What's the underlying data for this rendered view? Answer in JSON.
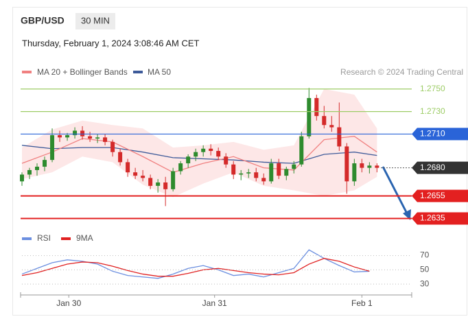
{
  "chart_data": {
    "type": "candlestick",
    "symbol": "GBP/USD",
    "timeframe": "30 MIN",
    "subtitle": "Thursday, February 1, 2024 3:08:46 AM CET",
    "credit": "Research © 2024 Trading Central",
    "up_color": "#2e8b2e",
    "down_color": "#d42a2a",
    "xlim": [
      0,
      51.6
    ],
    "ylim": [
      1.2628,
      1.2759
    ],
    "xticks": [
      {
        "value": 6.2,
        "label": "Jan 30"
      },
      {
        "value": 25.5,
        "label": "Jan 31"
      },
      {
        "value": 45,
        "label": "Feb 1"
      }
    ],
    "ohlc": [
      [
        1.2668,
        1.2676,
        1.2664,
        1.2674
      ],
      [
        1.2674,
        1.268,
        1.267,
        1.2678
      ],
      [
        1.2678,
        1.2684,
        1.2673,
        1.2681
      ],
      [
        1.2681,
        1.269,
        1.2677,
        1.2687
      ],
      [
        1.2687,
        1.2715,
        1.2685,
        1.2709
      ],
      [
        1.2709,
        1.2713,
        1.2703,
        1.2707
      ],
      [
        1.2707,
        1.2711,
        1.2704,
        1.2709
      ],
      [
        1.2709,
        1.2716,
        1.2706,
        1.2713
      ],
      [
        1.2713,
        1.2717,
        1.2705,
        1.2708
      ],
      [
        1.2708,
        1.2712,
        1.2703,
        1.2706
      ],
      [
        1.2706,
        1.271,
        1.2702,
        1.2707
      ],
      [
        1.2707,
        1.271,
        1.27,
        1.2703
      ],
      [
        1.2703,
        1.2705,
        1.269,
        1.2694
      ],
      [
        1.2694,
        1.2697,
        1.2682,
        1.2685
      ],
      [
        1.2685,
        1.2688,
        1.2672,
        1.2676
      ],
      [
        1.2676,
        1.268,
        1.267,
        1.2673
      ],
      [
        1.2673,
        1.2678,
        1.2668,
        1.2671
      ],
      [
        1.2671,
        1.2674,
        1.2661,
        1.2664
      ],
      [
        1.2664,
        1.267,
        1.2658,
        1.2667
      ],
      [
        1.2667,
        1.2672,
        1.2646,
        1.2661
      ],
      [
        1.2661,
        1.268,
        1.2659,
        1.2677
      ],
      [
        1.2677,
        1.2686,
        1.2674,
        1.2684
      ],
      [
        1.2684,
        1.2692,
        1.268,
        1.269
      ],
      [
        1.269,
        1.2697,
        1.2686,
        1.2694
      ],
      [
        1.2694,
        1.27,
        1.269,
        1.2697
      ],
      [
        1.2697,
        1.2701,
        1.2691,
        1.2695
      ],
      [
        1.2695,
        1.2698,
        1.2687,
        1.269
      ],
      [
        1.269,
        1.2693,
        1.268,
        1.2683
      ],
      [
        1.2683,
        1.2686,
        1.267,
        1.2674
      ],
      [
        1.2674,
        1.2678,
        1.2669,
        1.2675
      ],
      [
        1.2675,
        1.2679,
        1.2671,
        1.2676
      ],
      [
        1.2676,
        1.268,
        1.2668,
        1.2671
      ],
      [
        1.2671,
        1.2675,
        1.2665,
        1.2668
      ],
      [
        1.2668,
        1.2688,
        1.2666,
        1.2684
      ],
      [
        1.2684,
        1.2688,
        1.267,
        1.2673
      ],
      [
        1.2673,
        1.2681,
        1.2669,
        1.2679
      ],
      [
        1.2679,
        1.2686,
        1.2675,
        1.2683
      ],
      [
        1.2683,
        1.2712,
        1.2681,
        1.2708
      ],
      [
        1.2708,
        1.2751,
        1.2706,
        1.2742
      ],
      [
        1.2742,
        1.2745,
        1.2722,
        1.2726
      ],
      [
        1.2726,
        1.2735,
        1.2715,
        1.2718
      ],
      [
        1.2718,
        1.2726,
        1.2712,
        1.2716
      ],
      [
        1.2716,
        1.2738,
        1.2695,
        1.2699
      ],
      [
        1.2699,
        1.2702,
        1.2657,
        1.2668
      ],
      [
        1.2668,
        1.2688,
        1.2664,
        1.2684
      ],
      [
        1.2684,
        1.2688,
        1.2676,
        1.268
      ],
      [
        1.268,
        1.2685,
        1.2675,
        1.2682
      ],
      [
        1.2682,
        1.2684,
        1.2676,
        1.268
      ]
    ],
    "indicator_x": [
      0,
      4,
      8,
      12,
      16,
      20,
      24,
      28,
      32,
      36,
      40,
      44,
      47
    ],
    "bands": {
      "name": "MA 20 + Bollinger Bands",
      "color": "#f08080",
      "fill": "#fde3e3",
      "ma": [
        1.2684,
        1.2694,
        1.2706,
        1.2703,
        1.269,
        1.2676,
        1.2684,
        1.269,
        1.268,
        1.2678,
        1.2705,
        1.2708,
        1.2694
      ],
      "upper": [
        1.2698,
        1.2714,
        1.2722,
        1.2718,
        1.2715,
        1.2698,
        1.27,
        1.2703,
        1.2696,
        1.27,
        1.275,
        1.2745,
        1.2715
      ],
      "lower": [
        1.267,
        1.2676,
        1.269,
        1.2685,
        1.2665,
        1.2654,
        1.2666,
        1.2676,
        1.2664,
        1.266,
        1.2655,
        1.266,
        1.2672
      ]
    },
    "ma50": {
      "name": "MA 50",
      "color": "#3d5a99",
      "values": [
        1.27,
        1.2697,
        1.2698,
        1.2698,
        1.2694,
        1.2689,
        1.2688,
        1.2687,
        1.2685,
        1.2684,
        1.2692,
        1.2694,
        1.2691
      ]
    },
    "levels": [
      {
        "value": 1.275,
        "label": "1.2750",
        "color": "#9ccc65",
        "style": "text"
      },
      {
        "value": 1.273,
        "label": "1.2730",
        "color": "#9ccc65",
        "style": "text"
      },
      {
        "value": 1.271,
        "label": "1.2710",
        "color": "#2a64d8",
        "style": "box"
      },
      {
        "value": 1.268,
        "label": "1.2680",
        "color": "#333333",
        "style": "current"
      },
      {
        "value": 1.2655,
        "label": "1.2655",
        "color": "#e32020",
        "style": "box"
      },
      {
        "value": 1.2635,
        "label": "1.2635",
        "color": "#e32020",
        "style": "box"
      }
    ],
    "rsi": {
      "ylim": [
        20,
        85
      ],
      "yticks": [
        70,
        50,
        30
      ],
      "x": [
        0,
        2,
        4,
        6,
        8,
        10,
        12,
        14,
        16,
        18,
        20,
        22,
        24,
        26,
        28,
        30,
        32,
        34,
        36,
        38,
        40,
        42,
        44,
        46
      ],
      "series": [
        {
          "name": "RSI",
          "color": "#6b8fe0",
          "values": [
            44,
            52,
            60,
            64,
            62,
            58,
            48,
            42,
            40,
            38,
            44,
            52,
            56,
            50,
            42,
            44,
            40,
            46,
            52,
            78,
            66,
            56,
            47,
            48
          ]
        },
        {
          "name": "9MA",
          "color": "#e02020",
          "values": [
            42,
            46,
            52,
            58,
            61,
            60,
            55,
            49,
            44,
            41,
            41,
            45,
            50,
            52,
            49,
            46,
            44,
            43,
            46,
            58,
            66,
            62,
            54,
            48
          ]
        }
      ]
    }
  }
}
